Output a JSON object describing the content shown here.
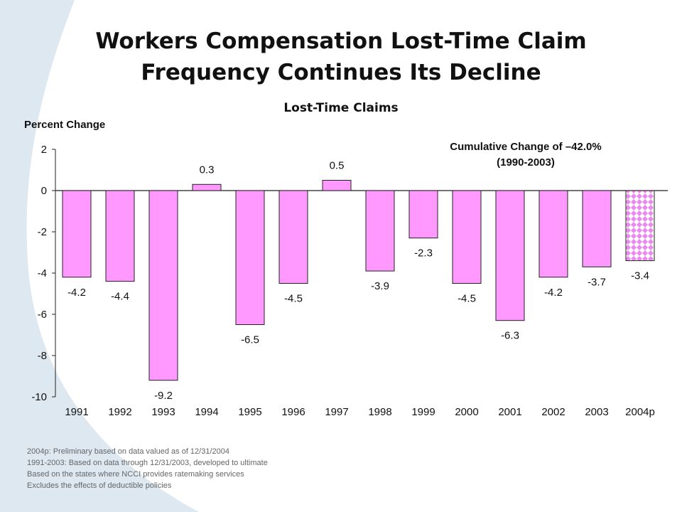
{
  "title_line1": "Workers Compensation Lost-Time Claim",
  "title_line2": "Frequency Continues Its Decline",
  "chart_data": {
    "type": "bar",
    "title": "Lost-Time Claims",
    "ylabel": "Percent Change",
    "xlabel": "",
    "categories": [
      "1991",
      "1992",
      "1993",
      "1994",
      "1995",
      "1996",
      "1997",
      "1998",
      "1999",
      "2000",
      "2001",
      "2002",
      "2003",
      "2004p"
    ],
    "values": [
      -4.2,
      -4.4,
      -9.2,
      0.3,
      -6.5,
      -4.5,
      0.5,
      -3.9,
      -2.3,
      -4.5,
      -6.3,
      -4.2,
      -3.7,
      -3.4
    ],
    "labels": [
      "-4.2",
      "-4.4",
      "-9.2",
      "0.3",
      "-6.5",
      "-4.5",
      "0.5",
      "-3.9",
      "-2.3",
      "-4.5",
      "-6.3",
      "-4.2",
      "-3.7",
      "-3.4"
    ],
    "ylim": [
      -10,
      2
    ],
    "yticks": [
      "2",
      "0",
      "-2",
      "-4",
      "-6",
      "-8",
      "-10"
    ],
    "ytick_values": [
      2,
      0,
      -2,
      -4,
      -6,
      -8,
      -10
    ],
    "grid": false,
    "bar_color": "#ff99ff",
    "highlight_category": "2004p",
    "highlight_pattern": "diamond-check"
  },
  "annotation_line1": "Cumulative Change of –42.0%",
  "annotation_line2": "(1990-2003)",
  "notes": [
    "2004p: Preliminary based on data valued as of 12/31/2004",
    "1991-2003: Based on data through 12/31/2003, developed to ultimate",
    "Based on the states where NCCI provides ratemaking services",
    "Excludes the effects of deductible policies"
  ],
  "colors": {
    "background_curve": "#dde8f1",
    "bar": "#ff99ff",
    "bar_outline": "#222222"
  }
}
